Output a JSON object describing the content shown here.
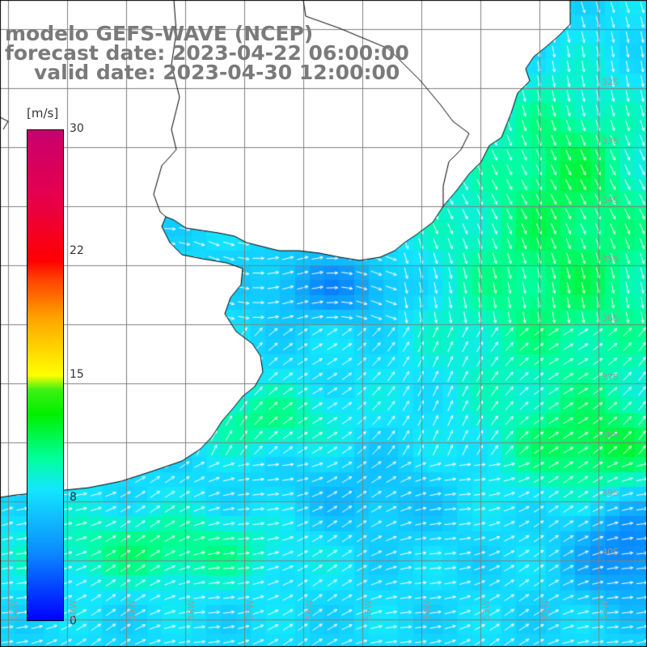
{
  "titles": {
    "line1": "modelo GEFS-WAVE (NCEP)",
    "line2": "forecast date: 2023-04-22 06:00:00",
    "line3": "valid date: 2023-04-30 12:00:00"
  },
  "colorbar": {
    "unit": "[m/s]",
    "ticks": [
      "30",
      "22",
      "15",
      "8",
      "0"
    ],
    "colors": [
      "#0000ff",
      "#0a8cff",
      "#14e6ff",
      "#00ff9c",
      "#00f000",
      "#ffff00",
      "#ff3c00",
      "#ff0000",
      "#c8006e"
    ]
  },
  "grid": {
    "lat_labels": [
      "32S",
      "33S",
      "34S",
      "35S",
      "36S",
      "37S",
      "38S",
      "39S",
      "40S"
    ],
    "lon_labels": [
      "61W",
      "60W",
      "59W",
      "58W",
      "57W",
      "56W",
      "55W",
      "54W",
      "53W",
      "52W",
      "51W"
    ]
  },
  "map": {
    "land_color": "#ffffff",
    "grid_color": "#808080",
    "coast_color": "#000000",
    "arrow_color": "#ffffff"
  }
}
